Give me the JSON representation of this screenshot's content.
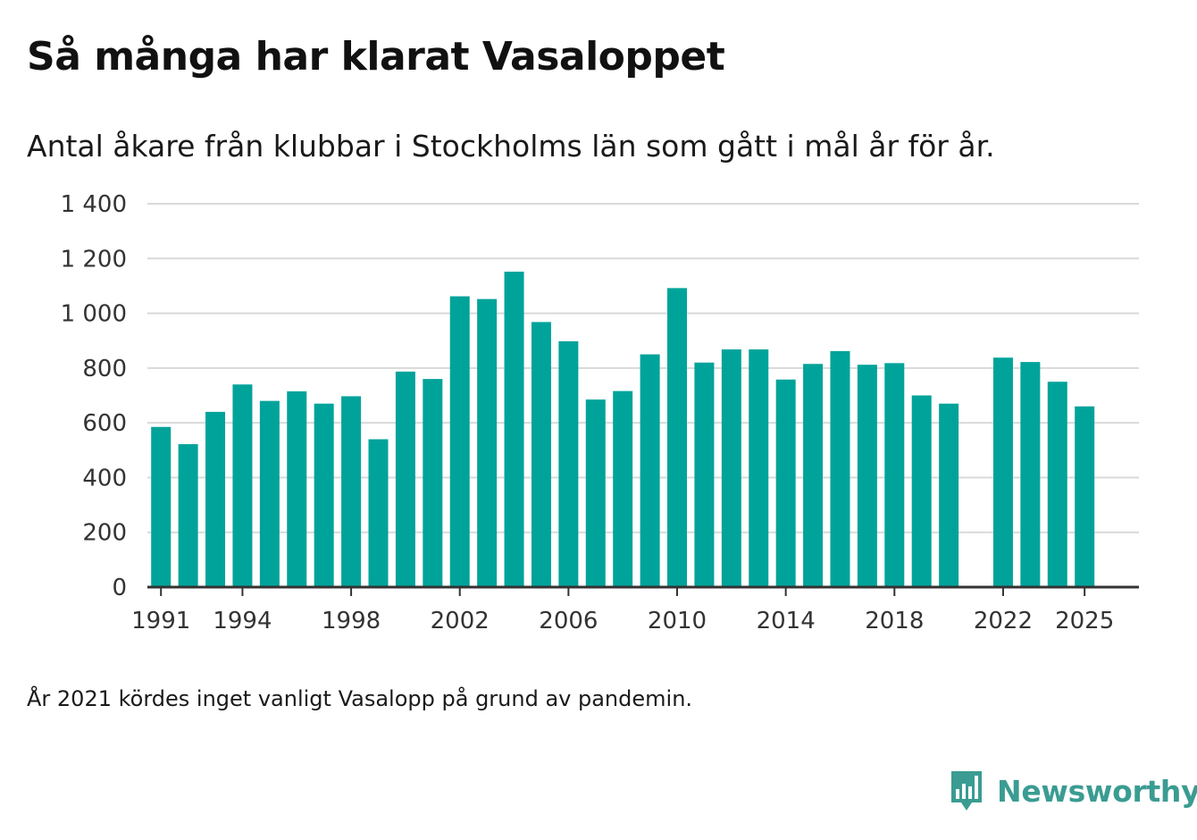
{
  "title": "Så många har klarat Vasaloppet",
  "subtitle": "Antal åkare från klubbar i Stockholms län som gått i mål år för år.",
  "note": "År 2021 kördes inget vanligt Vasalopp på grund av pandemin.",
  "brand": {
    "name": "Newsworthy",
    "icon": "newsworthy-logo-icon",
    "color": "#3a9c92"
  },
  "colors": {
    "bar": "#00a39a",
    "grid": "#d9d9d9",
    "axis": "#333333"
  },
  "chart_data": {
    "type": "bar",
    "title": "Så många har klarat Vasaloppet",
    "xlabel": "",
    "ylabel": "",
    "ylim": [
      0,
      1400
    ],
    "yticks": [
      0,
      200,
      400,
      600,
      800,
      1000,
      1200,
      1400
    ],
    "ytick_labels": [
      "0",
      "200",
      "400",
      "600",
      "800",
      "1 000",
      "1 200",
      "1 400"
    ],
    "xlim": [
      1990.5,
      2027
    ],
    "xticks": [
      1991,
      1994,
      1998,
      2002,
      2006,
      2010,
      2014,
      2018,
      2022,
      2025
    ],
    "xtick_labels": [
      "1991",
      "1994",
      "1998",
      "2002",
      "2006",
      "2010",
      "2014",
      "2018",
      "2022",
      "2025"
    ],
    "x": [
      1991,
      1992,
      1993,
      1994,
      1995,
      1996,
      1997,
      1998,
      1999,
      2000,
      2001,
      2002,
      2003,
      2004,
      2005,
      2006,
      2007,
      2008,
      2009,
      2010,
      2011,
      2012,
      2013,
      2014,
      2015,
      2016,
      2017,
      2018,
      2019,
      2020,
      2022,
      2023,
      2024,
      2025
    ],
    "values": [
      585,
      522,
      640,
      740,
      680,
      715,
      670,
      697,
      540,
      787,
      760,
      1062,
      1052,
      1152,
      968,
      898,
      685,
      716,
      850,
      1092,
      820,
      868,
      868,
      758,
      815,
      862,
      812,
      818,
      700,
      670,
      838,
      822,
      750,
      660
    ]
  }
}
